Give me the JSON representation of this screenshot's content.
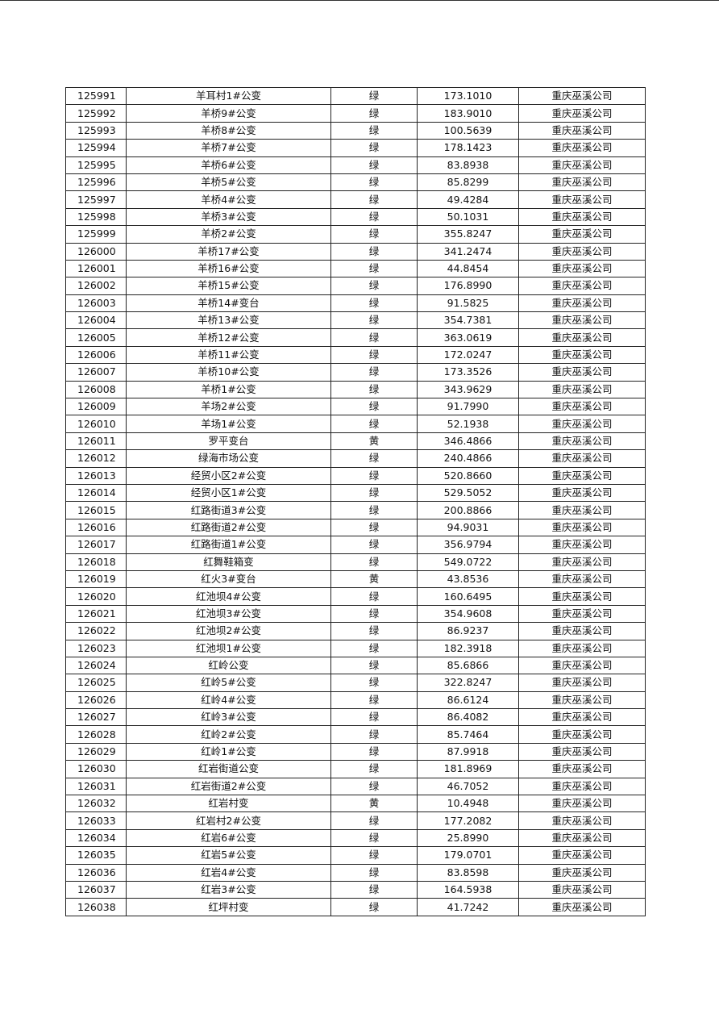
{
  "table": {
    "rows": [
      [
        "125991",
        "羊耳村1#公变",
        "绿",
        "173.1010",
        "重庆巫溪公司"
      ],
      [
        "125992",
        "羊桥9#公变",
        "绿",
        "183.9010",
        "重庆巫溪公司"
      ],
      [
        "125993",
        "羊桥8#公变",
        "绿",
        "100.5639",
        "重庆巫溪公司"
      ],
      [
        "125994",
        "羊桥7#公变",
        "绿",
        "178.1423",
        "重庆巫溪公司"
      ],
      [
        "125995",
        "羊桥6#公变",
        "绿",
        "83.8938",
        "重庆巫溪公司"
      ],
      [
        "125996",
        "羊桥5#公变",
        "绿",
        "85.8299",
        "重庆巫溪公司"
      ],
      [
        "125997",
        "羊桥4#公变",
        "绿",
        "49.4284",
        "重庆巫溪公司"
      ],
      [
        "125998",
        "羊桥3#公变",
        "绿",
        "50.1031",
        "重庆巫溪公司"
      ],
      [
        "125999",
        "羊桥2#公变",
        "绿",
        "355.8247",
        "重庆巫溪公司"
      ],
      [
        "126000",
        "羊桥17#公变",
        "绿",
        "341.2474",
        "重庆巫溪公司"
      ],
      [
        "126001",
        "羊桥16#公变",
        "绿",
        "44.8454",
        "重庆巫溪公司"
      ],
      [
        "126002",
        "羊桥15#公变",
        "绿",
        "176.8990",
        "重庆巫溪公司"
      ],
      [
        "126003",
        "羊桥14#变台",
        "绿",
        "91.5825",
        "重庆巫溪公司"
      ],
      [
        "126004",
        "羊桥13#公变",
        "绿",
        "354.7381",
        "重庆巫溪公司"
      ],
      [
        "126005",
        "羊桥12#公变",
        "绿",
        "363.0619",
        "重庆巫溪公司"
      ],
      [
        "126006",
        "羊桥11#公变",
        "绿",
        "172.0247",
        "重庆巫溪公司"
      ],
      [
        "126007",
        "羊桥10#公变",
        "绿",
        "173.3526",
        "重庆巫溪公司"
      ],
      [
        "126008",
        "羊桥1#公变",
        "绿",
        "343.9629",
        "重庆巫溪公司"
      ],
      [
        "126009",
        "羊场2#公变",
        "绿",
        "91.7990",
        "重庆巫溪公司"
      ],
      [
        "126010",
        "羊场1#公变",
        "绿",
        "52.1938",
        "重庆巫溪公司"
      ],
      [
        "126011",
        "罗平变台",
        "黄",
        "346.4866",
        "重庆巫溪公司"
      ],
      [
        "126012",
        "绿海市场公变",
        "绿",
        "240.4866",
        "重庆巫溪公司"
      ],
      [
        "126013",
        "经贸小区2#公变",
        "绿",
        "520.8660",
        "重庆巫溪公司"
      ],
      [
        "126014",
        "经贸小区1#公变",
        "绿",
        "529.5052",
        "重庆巫溪公司"
      ],
      [
        "126015",
        "红路街道3#公变",
        "绿",
        "200.8866",
        "重庆巫溪公司"
      ],
      [
        "126016",
        "红路街道2#公变",
        "绿",
        "94.9031",
        "重庆巫溪公司"
      ],
      [
        "126017",
        "红路街道1#公变",
        "绿",
        "356.9794",
        "重庆巫溪公司"
      ],
      [
        "126018",
        "红舞鞋箱变",
        "绿",
        "549.0722",
        "重庆巫溪公司"
      ],
      [
        "126019",
        "红火3#变台",
        "黄",
        "43.8536",
        "重庆巫溪公司"
      ],
      [
        "126020",
        "红池坝4#公变",
        "绿",
        "160.6495",
        "重庆巫溪公司"
      ],
      [
        "126021",
        "红池坝3#公变",
        "绿",
        "354.9608",
        "重庆巫溪公司"
      ],
      [
        "126022",
        "红池坝2#公变",
        "绿",
        "86.9237",
        "重庆巫溪公司"
      ],
      [
        "126023",
        "红池坝1#公变",
        "绿",
        "182.3918",
        "重庆巫溪公司"
      ],
      [
        "126024",
        "红岭公变",
        "绿",
        "85.6866",
        "重庆巫溪公司"
      ],
      [
        "126025",
        "红岭5#公变",
        "绿",
        "322.8247",
        "重庆巫溪公司"
      ],
      [
        "126026",
        "红岭4#公变",
        "绿",
        "86.6124",
        "重庆巫溪公司"
      ],
      [
        "126027",
        "红岭3#公变",
        "绿",
        "86.4082",
        "重庆巫溪公司"
      ],
      [
        "126028",
        "红岭2#公变",
        "绿",
        "85.7464",
        "重庆巫溪公司"
      ],
      [
        "126029",
        "红岭1#公变",
        "绿",
        "87.9918",
        "重庆巫溪公司"
      ],
      [
        "126030",
        "红岩街道公变",
        "绿",
        "181.8969",
        "重庆巫溪公司"
      ],
      [
        "126031",
        "红岩街道2#公变",
        "绿",
        "46.7052",
        "重庆巫溪公司"
      ],
      [
        "126032",
        "红岩村变",
        "黄",
        "10.4948",
        "重庆巫溪公司"
      ],
      [
        "126033",
        "红岩村2#公变",
        "绿",
        "177.2082",
        "重庆巫溪公司"
      ],
      [
        "126034",
        "红岩6#公变",
        "绿",
        "25.8990",
        "重庆巫溪公司"
      ],
      [
        "126035",
        "红岩5#公变",
        "绿",
        "179.0701",
        "重庆巫溪公司"
      ],
      [
        "126036",
        "红岩4#公变",
        "绿",
        "83.8598",
        "重庆巫溪公司"
      ],
      [
        "126037",
        "红岩3#公变",
        "绿",
        "164.5938",
        "重庆巫溪公司"
      ],
      [
        "126038",
        "红坪村变",
        "绿",
        "41.7242",
        "重庆巫溪公司"
      ]
    ]
  }
}
